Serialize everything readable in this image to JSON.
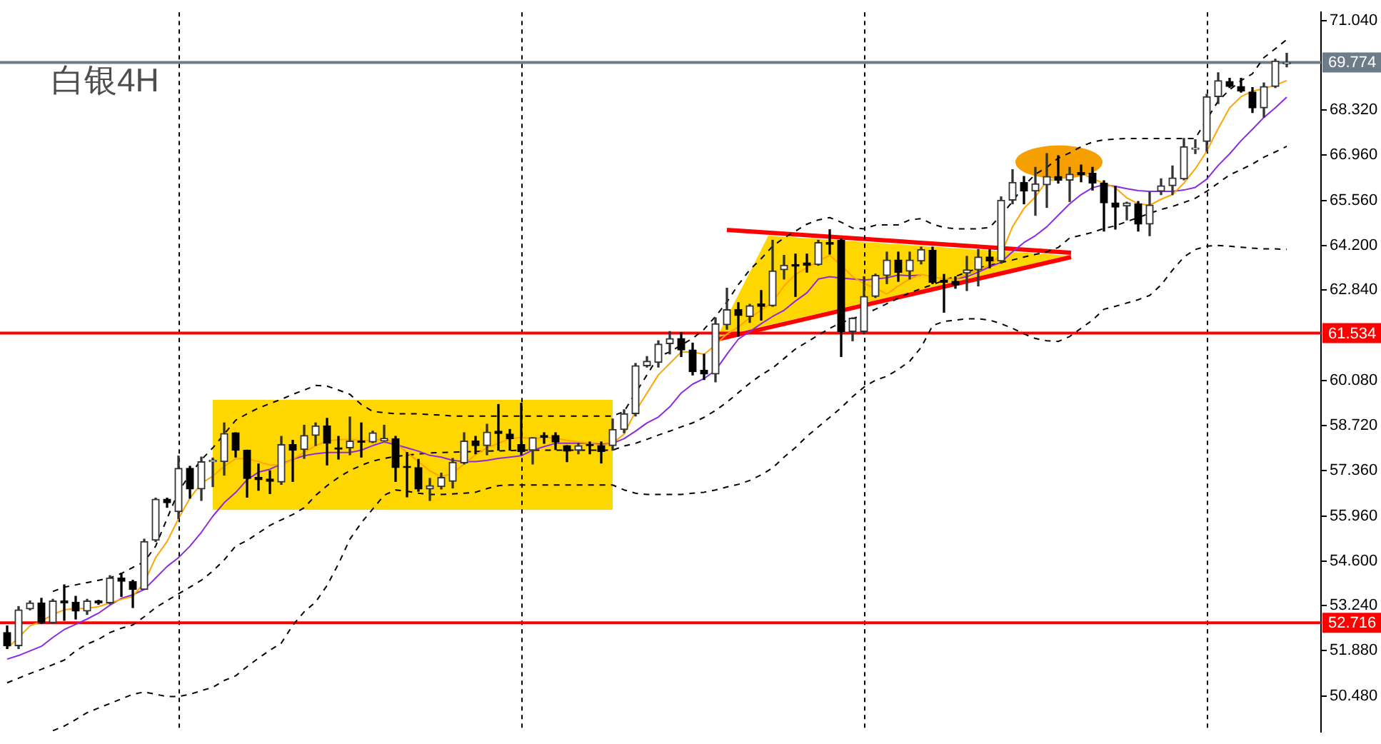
{
  "chart_data": {
    "type": "candlestick",
    "title": "白银4H",
    "categories": [
      null,
      null,
      null,
      null,
      null,
      null,
      null,
      null,
      null,
      null,
      null,
      null,
      null,
      null,
      null,
      null,
      null,
      null,
      null,
      null,
      null,
      null,
      null,
      null,
      null,
      null,
      null,
      null,
      null,
      null,
      null,
      null,
      null,
      null,
      null,
      null,
      null,
      null,
      null,
      null,
      null,
      null,
      null,
      null,
      null,
      null,
      null,
      null,
      null,
      null,
      null,
      null,
      null,
      null,
      null,
      null,
      null,
      null,
      null,
      null,
      null,
      null,
      null,
      null,
      null,
      null,
      null,
      null,
      null,
      null,
      null,
      null,
      null,
      null,
      null,
      null,
      null,
      null,
      null,
      null,
      null,
      null,
      null,
      null,
      null,
      null,
      null,
      null,
      null,
      null,
      null,
      null,
      null,
      null,
      null,
      null,
      null,
      null,
      null,
      null,
      null,
      null,
      null,
      null,
      null,
      null,
      null,
      null,
      null,
      null,
      null,
      null,
      null
    ],
    "ohlc": [
      [
        52.42,
        52.62,
        51.93,
        52.02
      ],
      [
        52.02,
        53.21,
        51.93,
        53.11
      ],
      [
        53.14,
        53.38,
        53.11,
        53.32
      ],
      [
        53.32,
        53.46,
        52.7,
        52.72
      ],
      [
        52.72,
        53.43,
        52.7,
        53.38
      ],
      [
        53.38,
        53.87,
        52.79,
        53.32
      ],
      [
        53.34,
        53.52,
        52.83,
        53.07
      ],
      [
        53.07,
        53.43,
        52.97,
        53.38
      ],
      [
        53.38,
        53.4,
        53.28,
        53.32
      ],
      [
        53.32,
        54.15,
        53.29,
        54.08
      ],
      [
        54.08,
        54.22,
        53.52,
        53.98
      ],
      [
        53.97,
        54.01,
        53.18,
        53.73
      ],
      [
        53.73,
        55.26,
        53.73,
        55.19
      ],
      [
        55.23,
        56.51,
        55.19,
        56.48
      ],
      [
        56.48,
        56.51,
        56.23,
        56.37
      ],
      [
        56.1,
        57.79,
        55.89,
        57.42
      ],
      [
        57.42,
        57.48,
        56.51,
        56.79
      ],
      [
        56.79,
        57.76,
        56.44,
        57.62
      ],
      [
        57.62,
        57.73,
        56.86,
        57.66
      ],
      [
        57.62,
        58.8,
        57.21,
        58.48
      ],
      [
        58.5,
        58.5,
        57.76,
        57.97
      ],
      [
        57.97,
        57.97,
        56.54,
        57.11
      ],
      [
        57.14,
        57.55,
        56.75,
        57.07
      ],
      [
        57.09,
        57.34,
        56.65,
        57.02
      ],
      [
        57.0,
        58.39,
        56.93,
        58.14
      ],
      [
        58.14,
        58.27,
        57.02,
        57.97
      ],
      [
        57.99,
        58.73,
        57.72,
        58.42
      ],
      [
        58.42,
        58.8,
        58.11,
        58.71
      ],
      [
        58.71,
        58.94,
        57.52,
        58.18
      ],
      [
        58.04,
        58.39,
        57.7,
        58.0
      ],
      [
        58.04,
        58.98,
        57.83,
        58.25
      ],
      [
        58.25,
        58.8,
        57.76,
        58.21
      ],
      [
        58.22,
        58.55,
        58.2,
        58.5
      ],
      [
        58.25,
        58.73,
        58.25,
        58.33
      ],
      [
        58.32,
        58.39,
        57.02,
        57.44
      ],
      [
        57.48,
        57.9,
        56.55,
        57.44
      ],
      [
        57.44,
        57.69,
        56.72,
        56.79
      ],
      [
        56.79,
        57.11,
        56.44,
        56.89
      ],
      [
        56.86,
        57.27,
        56.79,
        57.14
      ],
      [
        57.02,
        57.72,
        56.82,
        57.6
      ],
      [
        57.58,
        58.5,
        57.55,
        58.25
      ],
      [
        58.25,
        58.39,
        57.86,
        58.11
      ],
      [
        58.11,
        58.76,
        57.83,
        58.52
      ],
      [
        58.55,
        59.36,
        57.97,
        58.48
      ],
      [
        58.46,
        58.6,
        57.97,
        58.32
      ],
      [
        58.14,
        59.4,
        57.83,
        57.93
      ],
      [
        57.97,
        58.35,
        57.55,
        58.35
      ],
      [
        58.42,
        58.5,
        58.18,
        58.36
      ],
      [
        58.42,
        58.5,
        57.99,
        58.22
      ],
      [
        58.11,
        58.11,
        57.62,
        57.94
      ],
      [
        57.97,
        58.18,
        57.86,
        58.11
      ],
      [
        58.14,
        58.22,
        57.86,
        58.11
      ],
      [
        58.11,
        58.22,
        57.58,
        57.93
      ],
      [
        58.11,
        58.92,
        57.97,
        58.6
      ],
      [
        58.6,
        59.2,
        58.5,
        59.08
      ],
      [
        59.08,
        60.61,
        59.01,
        60.54
      ],
      [
        60.54,
        60.82,
        60.5,
        60.68
      ],
      [
        60.64,
        61.3,
        60.5,
        61.2
      ],
      [
        61.21,
        61.58,
        60.9,
        61.37
      ],
      [
        61.37,
        61.54,
        60.82,
        61.02
      ],
      [
        61.02,
        61.23,
        60.26,
        60.36
      ],
      [
        60.4,
        60.89,
        60.12,
        60.29
      ],
      [
        60.29,
        62.0,
        60.05,
        61.82
      ],
      [
        61.79,
        62.9,
        61.65,
        62.25
      ],
      [
        62.25,
        62.46,
        61.44,
        62.07
      ],
      [
        62.04,
        62.41,
        61.86,
        62.37
      ],
      [
        62.42,
        62.83,
        61.93,
        62.35
      ],
      [
        62.37,
        64.36,
        62.35,
        63.43
      ],
      [
        63.46,
        63.9,
        63.18,
        63.6
      ],
      [
        63.62,
        63.94,
        62.65,
        63.57
      ],
      [
        63.67,
        63.94,
        63.39,
        63.6
      ],
      [
        63.62,
        64.36,
        63.6,
        64.29
      ],
      [
        64.29,
        64.68,
        63.94,
        64.24
      ],
      [
        64.36,
        64.4,
        60.82,
        61.58
      ],
      [
        61.58,
        62.0,
        61.3,
        61.99
      ],
      [
        61.58,
        63.25,
        61.51,
        62.65
      ],
      [
        62.65,
        63.33,
        62.62,
        63.29
      ],
      [
        63.29,
        64.0,
        63.04,
        63.76
      ],
      [
        63.76,
        64.0,
        63.11,
        63.38
      ],
      [
        63.42,
        64.0,
        63.18,
        63.76
      ],
      [
        63.73,
        64.15,
        63.64,
        64.08
      ],
      [
        64.05,
        64.15,
        63.04,
        63.08
      ],
      [
        63.14,
        63.32,
        62.17,
        63.08
      ],
      [
        63.11,
        63.25,
        62.9,
        63.0
      ],
      [
        63.36,
        63.87,
        62.83,
        63.46
      ],
      [
        63.46,
        64.08,
        62.97,
        63.85
      ],
      [
        63.85,
        64.08,
        63.52,
        63.73
      ],
      [
        63.73,
        65.68,
        63.66,
        65.58
      ],
      [
        65.58,
        66.51,
        65.47,
        66.12
      ],
      [
        66.12,
        66.3,
        65.47,
        65.86
      ],
      [
        65.86,
        66.58,
        65.12,
        66.08
      ],
      [
        66.05,
        67.0,
        65.36,
        66.3
      ],
      [
        66.3,
        66.93,
        66.1,
        66.19
      ],
      [
        66.19,
        66.58,
        65.54,
        66.37
      ],
      [
        66.42,
        66.65,
        66.14,
        66.35
      ],
      [
        66.4,
        66.58,
        65.89,
        66.1
      ],
      [
        66.1,
        66.17,
        64.64,
        65.5
      ],
      [
        65.5,
        66.0,
        64.7,
        65.37
      ],
      [
        65.4,
        65.52,
        64.98,
        65.5
      ],
      [
        65.47,
        65.54,
        64.64,
        64.85
      ],
      [
        64.85,
        65.82,
        64.5,
        65.43
      ],
      [
        65.85,
        66.23,
        65.75,
        66.02
      ],
      [
        66.02,
        66.62,
        65.75,
        66.26
      ],
      [
        66.23,
        67.46,
        66.2,
        67.21
      ],
      [
        67.13,
        67.42,
        67.0,
        67.17
      ],
      [
        67.37,
        68.8,
        67.07,
        68.73
      ],
      [
        68.73,
        69.46,
        68.52,
        69.22
      ],
      [
        69.19,
        69.29,
        69.01,
        69.04
      ],
      [
        69.04,
        69.29,
        68.87,
        68.9
      ],
      [
        68.87,
        69.01,
        68.25,
        68.39
      ],
      [
        68.39,
        69.15,
        68.11,
        69.04
      ],
      [
        69.04,
        69.87,
        69.01,
        69.82
      ],
      [
        69.73,
        70.05,
        69.64,
        69.774
      ]
    ],
    "series": [
      {
        "type": "line",
        "color": "#ffa500",
        "values": [
          51.93,
          52.27,
          52.62,
          52.76,
          52.97,
          53.11,
          53.15,
          53.15,
          53.21,
          53.32,
          53.43,
          53.52,
          53.94,
          54.7,
          55.19,
          55.89,
          56.51,
          56.96,
          57.18,
          57.48,
          57.71,
          57.72,
          57.62,
          57.52,
          57.52,
          57.69,
          57.9,
          58.11,
          58.25,
          58.29,
          58.3,
          58.27,
          58.27,
          58.32,
          58.18,
          57.9,
          57.62,
          57.34,
          57.16,
          57.27,
          57.55,
          57.83,
          58.04,
          58.18,
          58.32,
          58.36,
          58.32,
          58.36,
          58.34,
          58.27,
          58.22,
          58.18,
          58.11,
          58.18,
          58.46,
          59.15,
          59.71,
          60.26,
          60.61,
          60.96,
          60.96,
          60.89,
          61.17,
          61.51,
          61.72,
          62.0,
          62.23,
          62.48,
          62.97,
          63.32,
          63.52,
          63.73,
          63.9,
          63.6,
          63.25,
          63.04,
          62.9,
          62.72,
          62.97,
          63.18,
          63.32,
          63.25,
          63.18,
          63.18,
          63.32,
          63.46,
          63.6,
          63.94,
          64.77,
          65.33,
          65.68,
          66.17,
          66.23,
          66.37,
          66.42,
          66.23,
          66.1,
          65.96,
          65.65,
          65.47,
          65.43,
          65.61,
          65.75,
          66.1,
          66.54,
          67.07,
          67.76,
          68.39,
          68.73,
          68.9,
          68.98,
          69.08,
          69.22
        ]
      },
      {
        "type": "line",
        "color": "#8a2be2",
        "values": [
          51.61,
          51.72,
          51.86,
          52.0,
          52.27,
          52.51,
          52.67,
          52.83,
          53.01,
          53.25,
          53.46,
          53.57,
          53.73,
          54.08,
          54.43,
          54.7,
          55.05,
          55.47,
          55.96,
          56.37,
          56.68,
          57.07,
          57.3,
          57.39,
          57.55,
          57.69,
          57.8,
          57.86,
          57.9,
          57.9,
          57.9,
          57.97,
          58.11,
          58.22,
          58.14,
          58.04,
          57.94,
          57.81,
          57.76,
          57.66,
          57.62,
          57.62,
          57.66,
          57.72,
          57.76,
          57.8,
          57.97,
          58.08,
          58.18,
          58.18,
          58.18,
          58.18,
          58.15,
          58.18,
          58.32,
          58.55,
          58.8,
          58.98,
          59.29,
          59.71,
          59.98,
          60.15,
          60.4,
          60.89,
          61.35,
          61.58,
          61.82,
          62.04,
          62.23,
          62.51,
          62.76,
          63.18,
          63.25,
          63.21,
          63.18,
          63.15,
          63.18,
          63.22,
          63.3,
          63.28,
          63.3,
          null,
          null,
          63.18,
          63.25,
          63.39,
          63.55,
          63.69,
          64.01,
          64.29,
          64.5,
          64.77,
          65.12,
          65.47,
          65.75,
          65.96,
          66.05,
          66.0,
          65.93,
          65.87,
          65.85,
          65.85,
          65.85,
          65.89,
          65.97,
          66.22,
          66.64,
          66.99,
          67.39,
          67.74,
          68.1,
          68.39,
          68.72
        ]
      },
      {
        "type": "line",
        "color": "#000000",
        "line_style": "dashed",
        "values": [
          null,
          null,
          null,
          null,
          53.67,
          53.8,
          53.87,
          53.94,
          54.01,
          54.08,
          54.22,
          54.4,
          54.57,
          55.05,
          55.89,
          56.72,
          57.22,
          57.68,
          58.04,
          58.46,
          58.88,
          59.08,
          59.25,
          59.39,
          59.52,
          59.67,
          59.8,
          59.94,
          59.92,
          59.8,
          59.67,
          59.36,
          59.15,
          59.11,
          59.08,
          59.08,
          59.08,
          59.05,
          59.04,
          59.01,
          59.01,
          59.01,
          59.01,
          59.01,
          59.01,
          59.01,
          59.01,
          59.01,
          59.01,
          59.01,
          59.01,
          59.01,
          59.01,
          59.01,
          59.15,
          59.71,
          60.26,
          60.82,
          60.96,
          61.17,
          61.37,
          61.65,
          62.04,
          62.48,
          63.01,
          63.46,
          63.8,
          64.18,
          64.43,
          64.64,
          64.85,
          64.98,
          65.05,
          64.91,
          64.73,
          64.71,
          64.82,
          64.83,
          64.83,
          64.98,
          65.02,
          64.85,
          64.75,
          64.71,
          64.71,
          64.71,
          64.75,
          65.12,
          65.54,
          66.02,
          66.37,
          66.58,
          66.86,
          67.02,
          67.21,
          67.35,
          67.42,
          67.44,
          67.46,
          67.46,
          67.46,
          67.46,
          67.46,
          67.46,
          67.46,
          68.04,
          68.6,
          68.94,
          69.22,
          69.43,
          69.92,
          70.19,
          70.47
        ]
      },
      {
        "type": "line",
        "color": "#000000",
        "line_style": "dashed",
        "values": [
          50.89,
          51.03,
          51.17,
          51.3,
          51.44,
          51.58,
          51.86,
          52.07,
          52.21,
          52.42,
          52.55,
          52.65,
          52.9,
          53.18,
          53.39,
          53.6,
          53.8,
          54.01,
          54.29,
          54.63,
          55.05,
          55.22,
          55.45,
          55.68,
          55.85,
          56.01,
          56.22,
          56.59,
          56.89,
          57.14,
          57.35,
          57.51,
          57.64,
          57.72,
          57.78,
          57.82,
          57.85,
          57.89,
          57.9,
          57.91,
          57.92,
          57.93,
          57.94,
          57.95,
          57.96,
          57.97,
          57.97,
          57.97,
          57.97,
          57.97,
          57.97,
          57.97,
          57.97,
          57.97,
          58.1,
          58.18,
          58.3,
          58.43,
          58.55,
          58.68,
          58.8,
          58.97,
          59.18,
          59.43,
          59.72,
          60.01,
          60.26,
          60.47,
          60.76,
          61.05,
          61.26,
          61.47,
          61.68,
          61.85,
          61.97,
          62.1,
          62.26,
          62.43,
          62.6,
          62.76,
          62.89,
          63.01,
          63.14,
          63.26,
          63.39,
          63.51,
          63.6,
          63.68,
          63.76,
          63.85,
          63.93,
          64.01,
          64.14,
          64.43,
          64.51,
          64.6,
          64.72,
          64.8,
          64.93,
          65.05,
          65.18,
          65.3,
          65.39,
          65.51,
          65.64,
          65.85,
          66.1,
          66.35,
          66.51,
          66.68,
          66.89,
          67.05,
          67.22
        ]
      },
      {
        "type": "line",
        "color": "#000000",
        "line_style": "dashed",
        "values": [
          null,
          null,
          null,
          null,
          49.43,
          49.57,
          49.77,
          49.98,
          50.12,
          50.26,
          50.4,
          50.54,
          50.61,
          50.54,
          50.47,
          50.47,
          50.54,
          50.65,
          50.75,
          50.96,
          51.1,
          51.38,
          51.64,
          51.88,
          52.1,
          52.64,
          53.05,
          53.35,
          53.85,
          54.51,
          55.26,
          55.76,
          56.18,
          56.6,
          56.76,
          56.72,
          56.66,
          56.62,
          56.62,
          56.64,
          56.66,
          56.69,
          56.8,
          56.89,
          56.91,
          56.91,
          56.91,
          56.91,
          56.91,
          56.91,
          56.91,
          56.91,
          56.91,
          56.91,
          56.76,
          56.66,
          56.62,
          56.62,
          56.62,
          56.62,
          56.66,
          56.69,
          56.76,
          56.85,
          56.93,
          57.05,
          57.22,
          57.43,
          57.76,
          58.05,
          58.39,
          58.68,
          58.97,
          59.26,
          59.6,
          59.89,
          60.1,
          60.22,
          60.43,
          60.68,
          61.1,
          61.76,
          61.89,
          61.93,
          61.97,
          61.97,
          61.93,
          61.82,
          61.68,
          61.51,
          61.37,
          61.3,
          61.28,
          61.43,
          61.68,
          61.93,
          62.26,
          62.35,
          62.45,
          62.55,
          62.68,
          63.0,
          63.45,
          63.85,
          64.08,
          64.18,
          64.2,
          64.18,
          64.15,
          64.12,
          64.1,
          64.1,
          64.08
        ]
      }
    ],
    "ylim": [
      49.4,
      71.3
    ],
    "yticks": [
      {
        "value": 50.48,
        "label": "50.480"
      },
      {
        "value": 51.88,
        "label": "51.880"
      },
      {
        "value": 53.24,
        "label": "53.240"
      },
      {
        "value": 54.6,
        "label": "54.600"
      },
      {
        "value": 55.96,
        "label": "55.960"
      },
      {
        "value": 57.36,
        "label": "57.360"
      },
      {
        "value": 58.72,
        "label": "58.720"
      },
      {
        "value": 60.08,
        "label": "60.080"
      },
      {
        "value": 62.84,
        "label": "62.840"
      },
      {
        "value": 64.2,
        "label": "64.200"
      },
      {
        "value": 65.56,
        "label": "65.560"
      },
      {
        "value": 66.96,
        "label": "66.960"
      },
      {
        "value": 68.32,
        "label": "68.320"
      },
      {
        "value": 71.04,
        "label": "71.040"
      }
    ],
    "ref_lines": [
      {
        "axis": "y",
        "value": 69.774,
        "label": "69.774",
        "color": "#6e7b88"
      },
      {
        "axis": "y",
        "value": 61.534,
        "label": "61.534",
        "color": "#ff0000"
      },
      {
        "axis": "y",
        "value": 52.716,
        "label": "52.716",
        "color": "#ff0000"
      }
    ],
    "tick_labels": "y"
  }
}
